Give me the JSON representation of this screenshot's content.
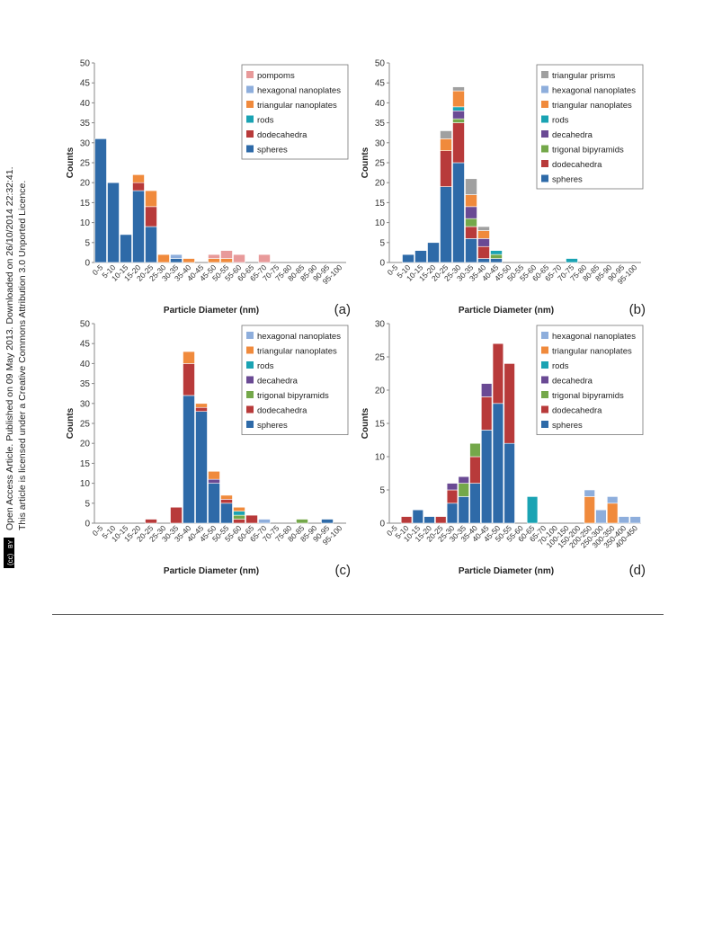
{
  "side_note": {
    "line1": "Open Access Article. Published on 09 May 2013. Downloaded on 26/10/2014 22:32:41.",
    "line2": "This article is licensed under a Creative Commons Attribution 3.0 Unported Licence.",
    "badge_left": "(cc)",
    "badge_right": "BY"
  },
  "colors": {
    "spheres": "#2e6aa8",
    "dodecahedra": "#b83a3a",
    "trigonal_bipyramids": "#74a84a",
    "decahedra": "#6a4a94",
    "rods": "#1aa3b3",
    "triangular_nanoplates": "#f08a3c",
    "hexagonal_nanoplates": "#8eaedc",
    "triangular_prisms": "#a0a0a0",
    "pompoms": "#e89a9a"
  },
  "chart_data": [
    {
      "id": "a",
      "type": "bar",
      "stacked": true,
      "panel_label": "(a)",
      "xlabel": "Particle Diameter (nm)",
      "ylabel": "Counts",
      "ylim": [
        0,
        50
      ],
      "yticks": [
        0,
        5,
        10,
        15,
        20,
        25,
        30,
        35,
        40,
        45,
        50
      ],
      "categories": [
        "0-5",
        "5-10",
        "10-15",
        "15-20",
        "20-25",
        "25-30",
        "30-35",
        "35-40",
        "40-45",
        "45-50",
        "50-55",
        "55-60",
        "60-65",
        "65-70",
        "70-75",
        "75-80",
        "80-85",
        "85-90",
        "90-95",
        "95-100"
      ],
      "legend_position": "top-right",
      "series": [
        {
          "name": "spheres",
          "color_key": "spheres",
          "values": [
            31,
            20,
            7,
            18,
            9,
            0,
            1,
            0,
            0,
            0,
            0,
            0,
            0,
            0,
            0,
            0,
            0,
            0,
            0,
            0
          ]
        },
        {
          "name": "dodecahedra",
          "color_key": "dodecahedra",
          "values": [
            0,
            0,
            0,
            2,
            5,
            0,
            0,
            0,
            0,
            0,
            0,
            0,
            0,
            0,
            0,
            0,
            0,
            0,
            0,
            0
          ]
        },
        {
          "name": "rods",
          "color_key": "rods",
          "values": [
            0,
            0,
            0,
            0,
            0,
            0,
            0,
            0,
            0,
            0,
            0,
            0,
            0,
            0,
            0,
            0,
            0,
            0,
            0,
            0
          ]
        },
        {
          "name": "triangular nanoplates",
          "color_key": "triangular_nanoplates",
          "values": [
            0,
            0,
            0,
            2,
            4,
            2,
            0,
            1,
            0,
            1,
            1,
            0,
            0,
            0,
            0,
            0,
            0,
            0,
            0,
            0
          ]
        },
        {
          "name": "hexagonal nanoplates",
          "color_key": "hexagonal_nanoplates",
          "values": [
            0,
            0,
            0,
            0,
            0,
            0,
            1,
            0,
            0,
            0,
            0,
            0,
            0,
            0,
            0,
            0,
            0,
            0,
            0,
            0
          ]
        },
        {
          "name": "pompoms",
          "color_key": "pompoms",
          "values": [
            0,
            0,
            0,
            0,
            0,
            0,
            0,
            0,
            0,
            1,
            2,
            2,
            0,
            2,
            0,
            0,
            0,
            0,
            0,
            0
          ]
        }
      ]
    },
    {
      "id": "b",
      "type": "bar",
      "stacked": true,
      "panel_label": "(b)",
      "xlabel": "Particle Diameter (nm)",
      "ylabel": "Counts",
      "ylim": [
        0,
        50
      ],
      "yticks": [
        0,
        5,
        10,
        15,
        20,
        25,
        30,
        35,
        40,
        45,
        50
      ],
      "categories": [
        "0-5",
        "5-10",
        "10-15",
        "15-20",
        "20-25",
        "25-30",
        "30-35",
        "35-40",
        "40-45",
        "45-50",
        "50-55",
        "55-60",
        "60-65",
        "65-70",
        "70-75",
        "75-80",
        "80-85",
        "85-90",
        "90-95",
        "95-100"
      ],
      "legend_position": "top-right",
      "series": [
        {
          "name": "spheres",
          "color_key": "spheres",
          "values": [
            0,
            2,
            3,
            5,
            19,
            25,
            6,
            1,
            1,
            0,
            0,
            0,
            0,
            0,
            0,
            0,
            0,
            0,
            0,
            0
          ]
        },
        {
          "name": "dodecahedra",
          "color_key": "dodecahedra",
          "values": [
            0,
            0,
            0,
            0,
            9,
            10,
            3,
            3,
            0,
            0,
            0,
            0,
            0,
            0,
            0,
            0,
            0,
            0,
            0,
            0
          ]
        },
        {
          "name": "trigonal bipyramids",
          "color_key": "trigonal_bipyramids",
          "values": [
            0,
            0,
            0,
            0,
            0,
            1,
            2,
            0,
            1,
            0,
            0,
            0,
            0,
            0,
            0,
            0,
            0,
            0,
            0,
            0
          ]
        },
        {
          "name": "decahedra",
          "color_key": "decahedra",
          "values": [
            0,
            0,
            0,
            0,
            0,
            2,
            3,
            2,
            0,
            0,
            0,
            0,
            0,
            0,
            0,
            0,
            0,
            0,
            0,
            0
          ]
        },
        {
          "name": "rods",
          "color_key": "rods",
          "values": [
            0,
            0,
            0,
            0,
            0,
            1,
            0,
            0,
            1,
            0,
            0,
            0,
            0,
            0,
            1,
            0,
            0,
            0,
            0,
            0
          ]
        },
        {
          "name": "triangular nanoplates",
          "color_key": "triangular_nanoplates",
          "values": [
            0,
            0,
            0,
            0,
            3,
            4,
            3,
            2,
            0,
            0,
            0,
            0,
            0,
            0,
            0,
            0,
            0,
            0,
            0,
            0
          ]
        },
        {
          "name": "hexagonal nanoplates",
          "color_key": "hexagonal_nanoplates",
          "values": [
            0,
            0,
            0,
            0,
            0,
            0,
            0,
            0,
            0,
            0,
            0,
            0,
            0,
            0,
            0,
            0,
            0,
            0,
            0,
            0
          ]
        },
        {
          "name": "triangular prisms",
          "color_key": "triangular_prisms",
          "values": [
            0,
            0,
            0,
            0,
            2,
            1,
            4,
            1,
            0,
            0,
            0,
            0,
            0,
            0,
            0,
            0,
            0,
            0,
            0,
            0
          ]
        }
      ]
    },
    {
      "id": "c",
      "type": "bar",
      "stacked": true,
      "panel_label": "(c)",
      "xlabel": "Particle Diameter (nm)",
      "ylabel": "Counts",
      "ylim": [
        0,
        50
      ],
      "yticks": [
        0,
        5,
        10,
        15,
        20,
        25,
        30,
        35,
        40,
        45,
        50
      ],
      "categories": [
        "0-5",
        "5-10",
        "10-15",
        "15-20",
        "20-25",
        "25-30",
        "30-35",
        "35-40",
        "40-45",
        "45-50",
        "50-55",
        "55-60",
        "60-65",
        "65-70",
        "70-75",
        "75-80",
        "80-85",
        "85-90",
        "90-95",
        "95-100"
      ],
      "legend_position": "top-right",
      "series": [
        {
          "name": "spheres",
          "color_key": "spheres",
          "values": [
            0,
            0,
            0,
            0,
            0,
            0,
            0,
            32,
            28,
            10,
            5,
            0,
            0,
            0,
            0,
            0,
            0,
            0,
            1,
            0
          ]
        },
        {
          "name": "dodecahedra",
          "color_key": "dodecahedra",
          "values": [
            0,
            0,
            0,
            0,
            1,
            0,
            4,
            8,
            1,
            0,
            1,
            1,
            2,
            0,
            0,
            0,
            0,
            0,
            0,
            0
          ]
        },
        {
          "name": "trigonal bipyramids",
          "color_key": "trigonal_bipyramids",
          "values": [
            0,
            0,
            0,
            0,
            0,
            0,
            0,
            0,
            0,
            0,
            0,
            1,
            0,
            0,
            0,
            0,
            1,
            0,
            0,
            0
          ]
        },
        {
          "name": "decahedra",
          "color_key": "decahedra",
          "values": [
            0,
            0,
            0,
            0,
            0,
            0,
            0,
            0,
            0,
            1,
            0,
            0,
            0,
            0,
            0,
            0,
            0,
            0,
            0,
            0
          ]
        },
        {
          "name": "rods",
          "color_key": "rods",
          "values": [
            0,
            0,
            0,
            0,
            0,
            0,
            0,
            0,
            0,
            0,
            0,
            1,
            0,
            0,
            0,
            0,
            0,
            0,
            0,
            0
          ]
        },
        {
          "name": "triangular nanoplates",
          "color_key": "triangular_nanoplates",
          "values": [
            0,
            0,
            0,
            0,
            0,
            0,
            0,
            3,
            1,
            2,
            1,
            1,
            0,
            0,
            0,
            0,
            0,
            0,
            0,
            0
          ]
        },
        {
          "name": "hexagonal nanoplates",
          "color_key": "hexagonal_nanoplates",
          "values": [
            0,
            0,
            0,
            0,
            0,
            0,
            0,
            0,
            0,
            0,
            0,
            0,
            0,
            1,
            0,
            0,
            0,
            0,
            0,
            0
          ]
        }
      ]
    },
    {
      "id": "d",
      "type": "bar",
      "stacked": true,
      "panel_label": "(d)",
      "xlabel": "Particle Diameter (nm)",
      "ylabel": "Counts",
      "ylim": [
        0,
        30
      ],
      "yticks": [
        0,
        5,
        10,
        15,
        20,
        25,
        30
      ],
      "categories": [
        "0-5",
        "5-10",
        "10-15",
        "15-20",
        "20-25",
        "25-30",
        "30-35",
        "35-40",
        "40-45",
        "45-50",
        "50-55",
        "55-60",
        "60-65",
        "65-70",
        "70-100",
        "100-150",
        "150-200",
        "200-250",
        "250-300",
        "300-350",
        "350-400",
        "400-450"
      ],
      "legend_position": "top-right",
      "series": [
        {
          "name": "spheres",
          "color_key": "spheres",
          "values": [
            0,
            0,
            2,
            1,
            0,
            3,
            4,
            6,
            14,
            18,
            12,
            0,
            0,
            0,
            0,
            0,
            0,
            0,
            0,
            0,
            0,
            0
          ]
        },
        {
          "name": "dodecahedra",
          "color_key": "dodecahedra",
          "values": [
            0,
            1,
            0,
            0,
            1,
            2,
            0,
            4,
            5,
            9,
            12,
            0,
            0,
            0,
            0,
            0,
            0,
            0,
            0,
            0,
            0,
            0
          ]
        },
        {
          "name": "trigonal bipyramids",
          "color_key": "trigonal_bipyramids",
          "values": [
            0,
            0,
            0,
            0,
            0,
            0,
            2,
            2,
            0,
            0,
            0,
            0,
            0,
            0,
            0,
            0,
            0,
            0,
            0,
            0,
            0,
            0
          ]
        },
        {
          "name": "decahedra",
          "color_key": "decahedra",
          "values": [
            0,
            0,
            0,
            0,
            0,
            1,
            1,
            0,
            2,
            0,
            0,
            0,
            0,
            0,
            0,
            0,
            0,
            0,
            0,
            0,
            0,
            0
          ]
        },
        {
          "name": "rods",
          "color_key": "rods",
          "values": [
            0,
            0,
            0,
            0,
            0,
            0,
            0,
            0,
            0,
            0,
            0,
            0,
            4,
            0,
            0,
            0,
            0,
            0,
            0,
            0,
            0,
            0
          ]
        },
        {
          "name": "triangular nanoplates",
          "color_key": "triangular_nanoplates",
          "values": [
            0,
            0,
            0,
            0,
            0,
            0,
            0,
            0,
            0,
            0,
            0,
            0,
            0,
            0,
            0,
            0,
            0,
            4,
            0,
            3,
            0,
            0
          ]
        },
        {
          "name": "hexagonal nanoplates",
          "color_key": "hexagonal_nanoplates",
          "values": [
            0,
            0,
            0,
            0,
            0,
            0,
            0,
            0,
            0,
            0,
            0,
            0,
            0,
            0,
            0,
            0,
            0,
            1,
            2,
            1,
            1,
            1
          ]
        }
      ]
    }
  ],
  "legend_order": {
    "a": [
      "pompoms",
      "hexagonal nanoplates",
      "triangular nanoplates",
      "rods",
      "dodecahedra",
      "spheres"
    ],
    "b": [
      "triangular prisms",
      "hexagonal nanoplates",
      "triangular nanoplates",
      "rods",
      "decahedra",
      "trigonal bipyramids",
      "dodecahedra",
      "spheres"
    ],
    "c": [
      "hexagonal nanoplates",
      "triangular nanoplates",
      "rods",
      "decahedra",
      "trigonal bipyramids",
      "dodecahedra",
      "spheres"
    ],
    "d": [
      "hexagonal nanoplates",
      "triangular nanoplates",
      "rods",
      "decahedra",
      "trigonal bipyramids",
      "dodecahedra",
      "spheres"
    ]
  }
}
